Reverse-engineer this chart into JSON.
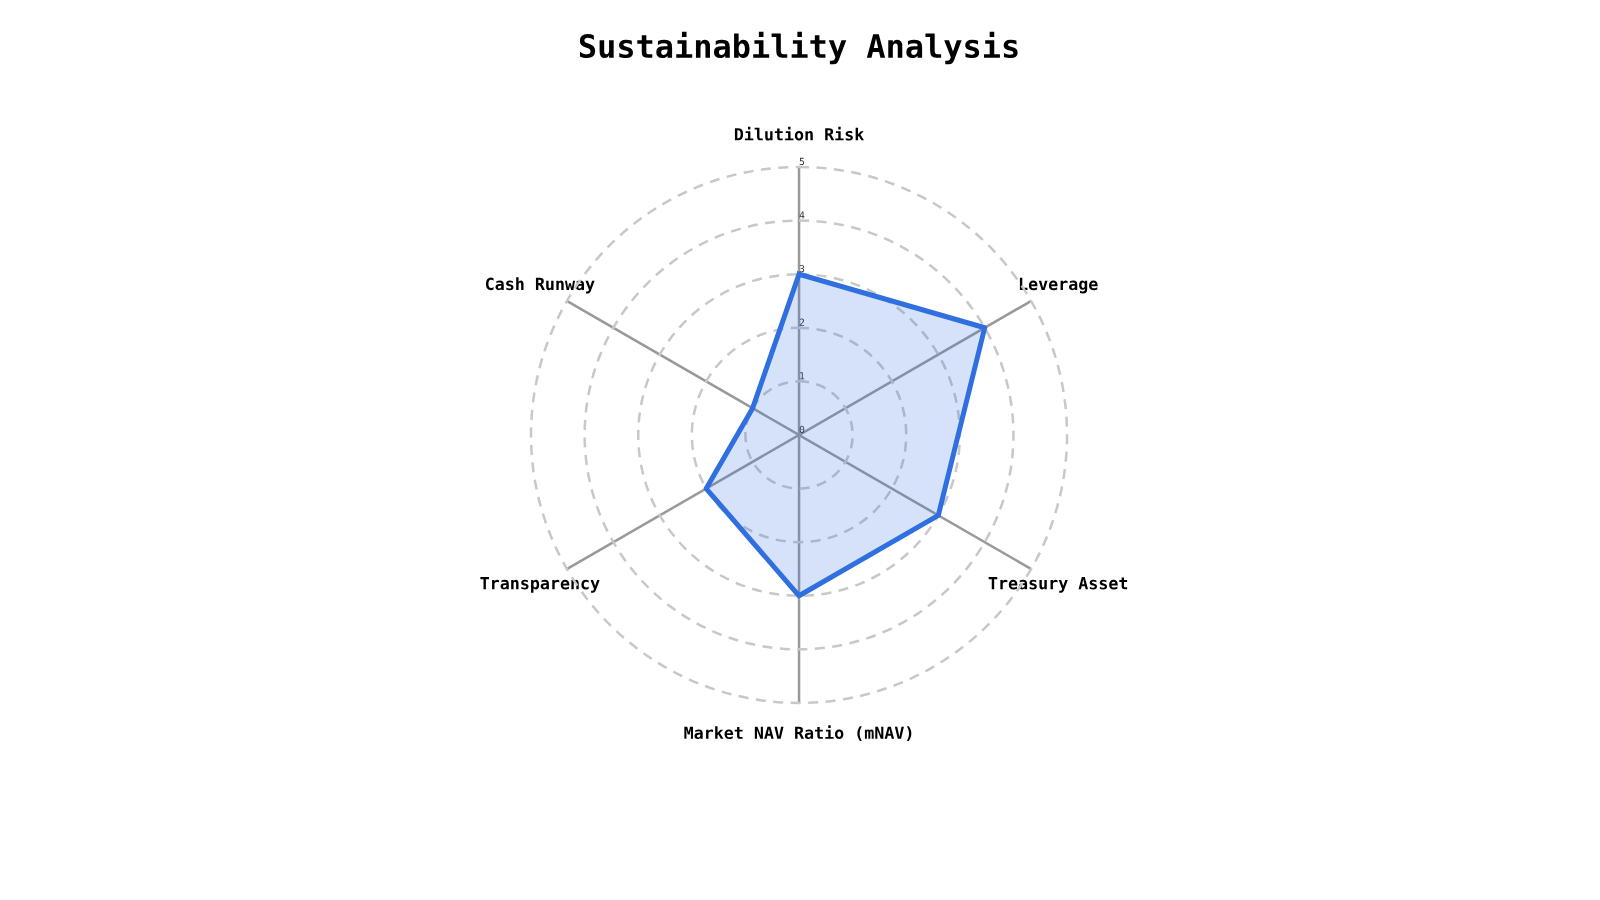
{
  "chart_data": {
    "type": "radar",
    "title": "Sustainability Analysis",
    "categories": [
      "Dilution Risk",
      "Leverage",
      "Treasury Asset",
      "Market NAV Ratio (mNAV)",
      "Transparency",
      "Cash Runway"
    ],
    "series": [
      {
        "color": "#2f6fdf",
        "values": [
          3,
          4,
          3,
          3,
          2,
          1
        ]
      }
    ],
    "ylim": [
      0,
      5
    ],
    "yticks": [
      0,
      1,
      2,
      3,
      4,
      5
    ],
    "grid": true
  }
}
